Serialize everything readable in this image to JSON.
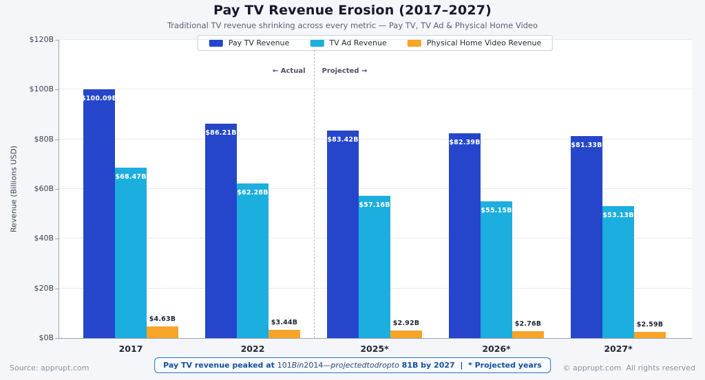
{
  "header": {
    "title": "Pay TV Revenue Erosion (2017–2027)",
    "subtitle": "Traditional TV revenue shrinking across every metric — Pay TV, TV Ad & Physical Home Video"
  },
  "chart_data": {
    "type": "bar",
    "title": "Pay TV Revenue Erosion (2017–2027)",
    "categories": [
      "2017",
      "2022",
      "2025*",
      "2026*",
      "2027*"
    ],
    "series": [
      {
        "name": "Pay TV Revenue",
        "color": "#2546cb",
        "values": [
          100.09,
          86.21,
          83.42,
          82.39,
          81.33
        ],
        "labels": [
          "$100.09B",
          "$86.21B",
          "$83.42B",
          "$82.39B",
          "$81.33B"
        ],
        "label_position": "inside",
        "label_color": "#ffffff"
      },
      {
        "name": "TV Ad Revenue",
        "color": "#1caede",
        "values": [
          68.47,
          62.28,
          57.16,
          55.15,
          53.13
        ],
        "labels": [
          "$68.47B",
          "$62.28B",
          "$57.16B",
          "$55.15B",
          "$53.13B"
        ],
        "label_position": "inside",
        "label_color": "#ffffff"
      },
      {
        "name": "Physical Home Video Revenue",
        "color": "#f7a428",
        "values": [
          4.63,
          3.44,
          2.92,
          2.76,
          2.59
        ],
        "labels": [
          "$4.63B",
          "$3.44B",
          "$2.92B",
          "$2.76B",
          "$2.59B"
        ],
        "label_position": "above",
        "label_color": "#1f2533"
      }
    ],
    "xlabel": "",
    "ylabel": "Revenue (Billions USD)",
    "ylim": [
      0,
      120
    ],
    "yticks": [
      0,
      20,
      40,
      60,
      80,
      100,
      120
    ],
    "ytick_labels": [
      "$0B",
      "$20B",
      "$40B",
      "$60B",
      "$80B",
      "$100B",
      "$120B"
    ],
    "grid": true,
    "legend_position": "top-center",
    "separator_after_index": 1,
    "annotations": {
      "left": "← Actual",
      "right": "Projected →"
    }
  },
  "footer": {
    "source": "Source: apprupt.com",
    "copyright": "© apprupt.com  All rights reserved",
    "note": {
      "bold_prefix": "Pay TV revenue peaked at ",
      "math_1": "101",
      "math_2": "Bin",
      "math_3": "2014—",
      "math_4": "projectedtodropto",
      "bold_suffix": " 81B by 2027  |  * Projected years"
    }
  }
}
